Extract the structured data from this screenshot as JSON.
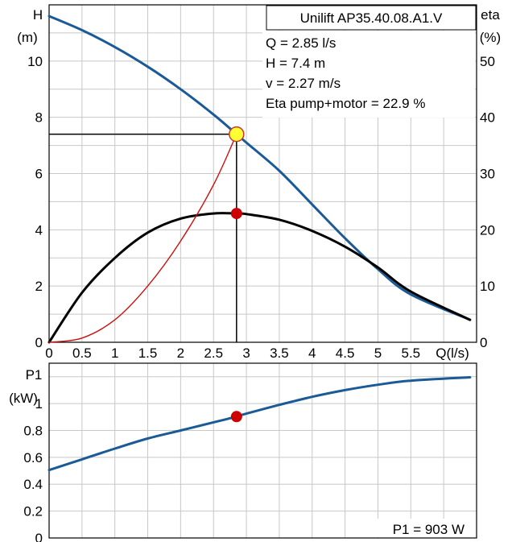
{
  "chart_data": [
    {
      "type": "line",
      "title": "Unilift AP35.40.08.A1.V",
      "xlabel": "Q(l/s)",
      "ylabel_left_line1": "H",
      "ylabel_left_line2": "(m)",
      "ylabel_right_line1": "eta",
      "ylabel_right_line2": "(%)",
      "xlim": [
        0,
        6.5
      ],
      "ylim_left": [
        0,
        12
      ],
      "ylim_right": [
        0,
        60
      ],
      "x_ticks": [
        "0",
        "0.5",
        "1",
        "1.5",
        "2",
        "2.5",
        "3",
        "3.5",
        "4",
        "4.5",
        "5",
        "5.5"
      ],
      "x_tick_values": [
        0,
        0.5,
        1,
        1.5,
        2,
        2.5,
        3,
        3.5,
        4,
        4.5,
        5,
        5.5
      ],
      "y_ticks_left": [
        "0",
        "2",
        "4",
        "6",
        "8",
        "10"
      ],
      "y_tick_values_left": [
        0,
        2,
        4,
        6,
        8,
        10
      ],
      "y_ticks_right": [
        "0",
        "10",
        "20",
        "30",
        "40",
        "50"
      ],
      "y_tick_values_right": [
        0,
        10,
        20,
        30,
        40,
        50
      ],
      "grid": true,
      "info": {
        "q": "Q = 2.85 l/s",
        "h": "H = 7.4 m",
        "v": "v = 2.27 m/s",
        "eta": "Eta pump+motor = 22.9 %"
      },
      "duty_point": {
        "q": 2.85,
        "h": 7.4,
        "eta": 22.9
      },
      "series": [
        {
          "axis": "left",
          "color": "#1a5a96",
          "x": [
            0,
            0.5,
            1,
            1.5,
            2,
            2.5,
            2.85,
            3,
            3.5,
            4,
            4.5,
            5,
            5.5,
            6.4
          ],
          "values": [
            11.6,
            11.1,
            10.5,
            9.8,
            9.0,
            8.1,
            7.4,
            7.1,
            6.1,
            4.9,
            3.7,
            2.6,
            1.7,
            0.8
          ]
        },
        {
          "axis": "right",
          "color": "#000000",
          "x": [
            0,
            0.5,
            1,
            1.5,
            2,
            2.5,
            2.85,
            3,
            3.5,
            4,
            4.5,
            5,
            5.5,
            6.4
          ],
          "values": [
            0,
            8.8,
            15.0,
            19.5,
            22.0,
            22.9,
            22.9,
            22.8,
            21.8,
            19.8,
            17.0,
            13.3,
            9.0,
            4.0
          ]
        },
        {
          "axis": "left",
          "color": "#cc1111",
          "x": [
            0,
            0.5,
            1,
            1.5,
            2,
            2.5,
            2.85
          ],
          "values": [
            0,
            0.15,
            0.8,
            2.0,
            3.6,
            5.6,
            7.4
          ]
        }
      ]
    },
    {
      "type": "line",
      "xlabel": "",
      "ylabel_line1": "P1",
      "ylabel_line2": "(kW)",
      "xlim": [
        0,
        6.5
      ],
      "ylim": [
        0,
        1.3
      ],
      "y_ticks": [
        "0",
        "0.2",
        "0.4",
        "0.6",
        "0.8",
        "1"
      ],
      "y_tick_values": [
        0,
        0.2,
        0.4,
        0.6,
        0.8,
        1.0
      ],
      "grid": true,
      "info": {
        "p1": "P1 = 903 W"
      },
      "duty_point": {
        "q": 2.85,
        "p1": 0.903
      },
      "series": [
        {
          "color": "#1a5a96",
          "x": [
            0,
            0.5,
            1,
            1.5,
            2,
            2.5,
            2.85,
            3,
            3.5,
            4,
            4.5,
            5,
            5.5,
            6.4
          ],
          "values": [
            0.505,
            0.585,
            0.665,
            0.74,
            0.8,
            0.86,
            0.903,
            0.925,
            0.99,
            1.05,
            1.1,
            1.14,
            1.17,
            1.195
          ]
        }
      ]
    }
  ]
}
